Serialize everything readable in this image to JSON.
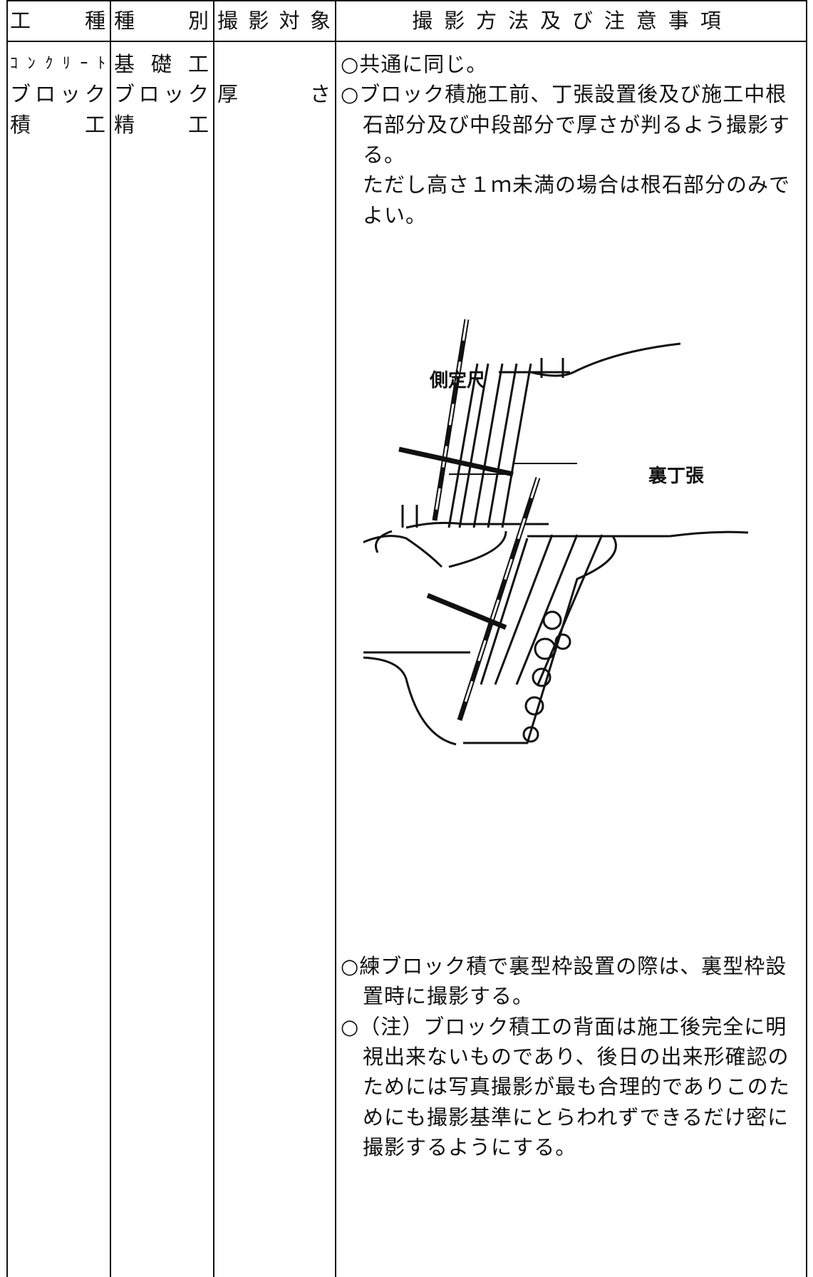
{
  "header": {
    "cells": [
      "工種",
      "種別",
      "撮影対象",
      "撮影方法及び注意事項"
    ]
  },
  "body": {
    "work_type": [
      "ｺﾝｸﾘｰﾄ",
      "ブロック",
      "積工"
    ],
    "category": [
      "基礎工",
      "ブロック",
      "精工"
    ],
    "target": [
      "厚さ"
    ],
    "notes_top": [
      "○共通に同じ。",
      "○ブロック積施工前、丁張設置後及び施工中根",
      "石部分及び中段部分で厚さが判るよう撮影す",
      "る。",
      "ただし高さ１ｍ未満の場合は根石部分のみで",
      "よい。"
    ],
    "figure": {
      "labels": [
        "側定尺",
        "裏丁張"
      ]
    },
    "notes_bottom": [
      "○練ブロック積で裏型枠設置の際は、裏型枠設",
      "置時に撮影する。",
      "○（注）ブロック積工の背面は施工後完全に明",
      "視出来ないものであり、後日の出来形確認の",
      "ためには写真撮影が最も合理的でありこのた",
      "めにも撮影基準にとらわれずできるだけ密に",
      "撮影するようにする。"
    ]
  }
}
